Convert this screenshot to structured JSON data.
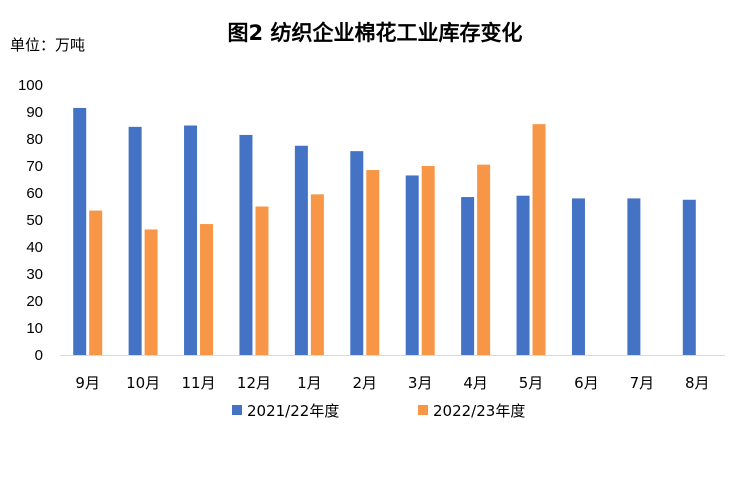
{
  "chart_data": {
    "type": "bar",
    "title": "图2 纺织企业棉花工业库存变化",
    "unit_label": "单位：万吨",
    "xlabel": "",
    "ylabel": "",
    "categories": [
      "9月",
      "10月",
      "11月",
      "12月",
      "1月",
      "2月",
      "3月",
      "4月",
      "5月",
      "6月",
      "7月",
      "8月"
    ],
    "yticks": [
      "0",
      "10",
      "20",
      "30",
      "40",
      "50",
      "60",
      "70",
      "80",
      "90",
      "100"
    ],
    "ylim": [
      0,
      100
    ],
    "grid": false,
    "legend_position": "bottom",
    "series": [
      {
        "name": "2021/22年度",
        "color": "#4472c4",
        "values": [
          91.5,
          84.5,
          85,
          81.5,
          77.5,
          75.5,
          66.5,
          58.5,
          59,
          58,
          58,
          57.5
        ]
      },
      {
        "name": "2022/23年度",
        "color": "#f79646",
        "values": [
          53.5,
          46.5,
          48.5,
          55,
          59.5,
          68.5,
          70,
          70.5,
          85.5,
          null,
          null,
          null
        ]
      }
    ]
  }
}
